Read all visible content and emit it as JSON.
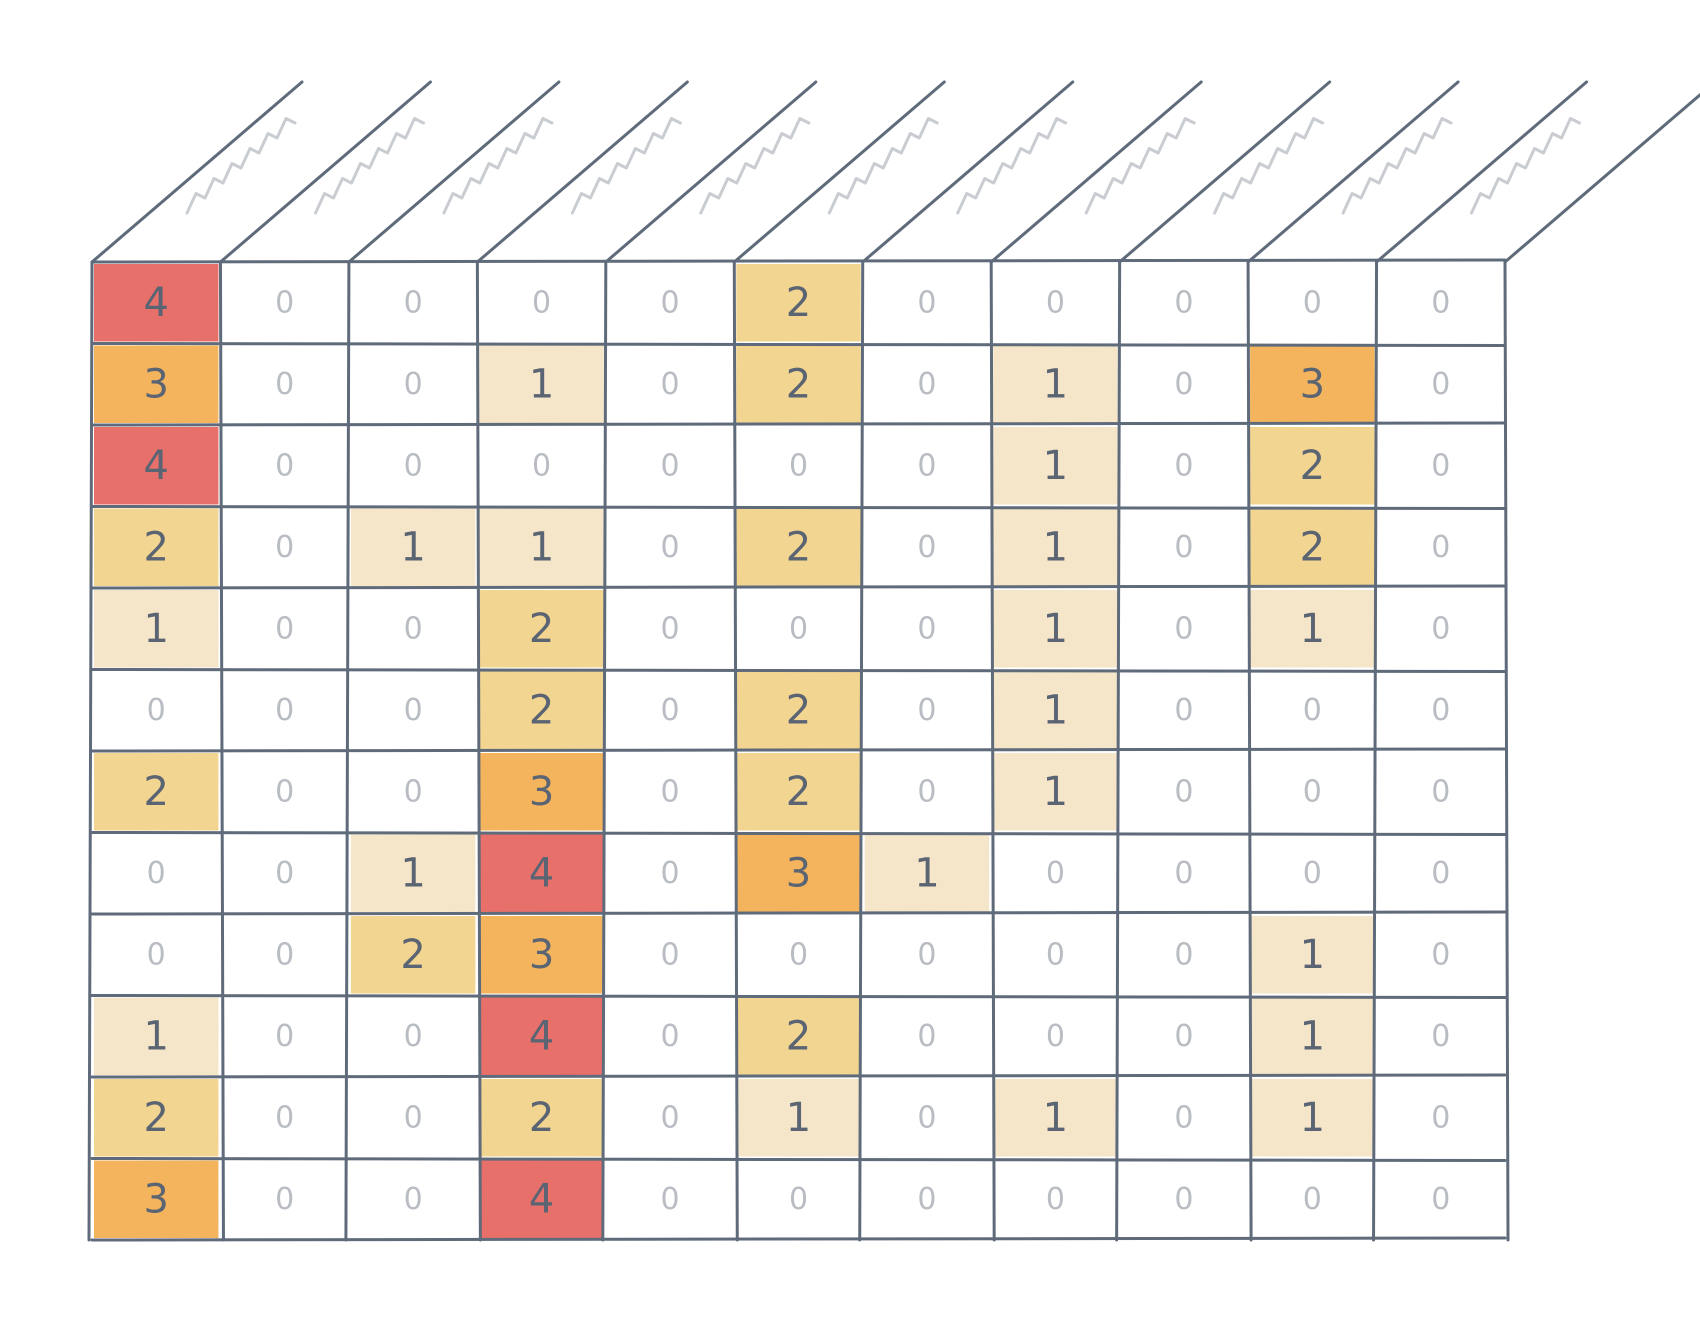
{
  "table": {
    "rows": [
      [
        4,
        0,
        0,
        0,
        0,
        2,
        0,
        0,
        0,
        0,
        0
      ],
      [
        3,
        0,
        0,
        1,
        0,
        2,
        0,
        1,
        0,
        3,
        0
      ],
      [
        4,
        0,
        0,
        0,
        0,
        0,
        0,
        1,
        0,
        2,
        0
      ],
      [
        2,
        0,
        1,
        1,
        0,
        2,
        0,
        1,
        0,
        2,
        0
      ],
      [
        1,
        0,
        0,
        2,
        0,
        0,
        0,
        1,
        0,
        1,
        0
      ],
      [
        0,
        0,
        0,
        2,
        0,
        2,
        0,
        1,
        0,
        0,
        0
      ],
      [
        2,
        0,
        0,
        3,
        0,
        2,
        0,
        1,
        0,
        0,
        0
      ],
      [
        0,
        0,
        1,
        4,
        0,
        3,
        1,
        0,
        0,
        0,
        0
      ],
      [
        0,
        0,
        2,
        3,
        0,
        0,
        0,
        0,
        0,
        1,
        0
      ],
      [
        1,
        0,
        0,
        4,
        0,
        2,
        0,
        0,
        0,
        1,
        0
      ],
      [
        2,
        0,
        0,
        2,
        0,
        1,
        0,
        1,
        0,
        1,
        0
      ],
      [
        3,
        0,
        0,
        4,
        0,
        0,
        0,
        0,
        0,
        0,
        0
      ]
    ]
  },
  "colors": [
    "#ffffff",
    "#f5e6c9",
    "#f3d592",
    "#f4b45e",
    "#e8706b"
  ]
}
